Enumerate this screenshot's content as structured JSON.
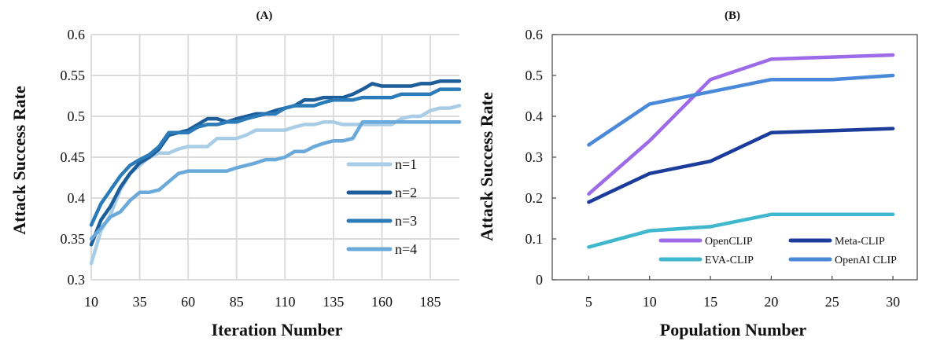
{
  "chart_data": [
    {
      "type": "line",
      "title": "(A)",
      "xlabel": "Iteration Number",
      "ylabel": "Attack Success Rate",
      "xlim": [
        10,
        200
      ],
      "ylim": [
        0.3,
        0.6
      ],
      "x_ticks": [
        "10",
        "35",
        "60",
        "85",
        "110",
        "135",
        "160",
        "185"
      ],
      "y_ticks": [
        "0.3",
        "0.35",
        "0.4",
        "0.45",
        "0.5",
        "0.55",
        "0.6"
      ],
      "grid": true,
      "legend_position": "bottom-right",
      "series": [
        {
          "name": "n=1",
          "color": "#a9cde6",
          "x": [
            10,
            15,
            20,
            25,
            30,
            35,
            40,
            45,
            50,
            55,
            60,
            65,
            70,
            75,
            80,
            85,
            90,
            95,
            100,
            105,
            110,
            115,
            120,
            125,
            130,
            135,
            140,
            145,
            150,
            155,
            160,
            165,
            170,
            175,
            180,
            185,
            190,
            195,
            200
          ],
          "values": [
            0.32,
            0.36,
            0.38,
            0.41,
            0.43,
            0.44,
            0.45,
            0.455,
            0.455,
            0.46,
            0.463,
            0.463,
            0.463,
            0.473,
            0.473,
            0.473,
            0.477,
            0.483,
            0.483,
            0.483,
            0.483,
            0.487,
            0.49,
            0.49,
            0.493,
            0.493,
            0.49,
            0.49,
            0.49,
            0.49,
            0.49,
            0.49,
            0.497,
            0.5,
            0.5,
            0.507,
            0.51,
            0.51,
            0.513
          ]
        },
        {
          "name": "n=2",
          "color": "#1c5d9a",
          "x": [
            10,
            15,
            20,
            25,
            30,
            35,
            40,
            45,
            50,
            55,
            60,
            65,
            70,
            75,
            80,
            85,
            90,
            95,
            100,
            105,
            110,
            115,
            120,
            125,
            130,
            135,
            140,
            145,
            150,
            155,
            160,
            165,
            170,
            175,
            180,
            185,
            190,
            195,
            200
          ],
          "values": [
            0.343,
            0.373,
            0.39,
            0.413,
            0.43,
            0.443,
            0.45,
            0.46,
            0.477,
            0.48,
            0.483,
            0.49,
            0.497,
            0.497,
            0.493,
            0.497,
            0.5,
            0.503,
            0.503,
            0.507,
            0.51,
            0.513,
            0.52,
            0.52,
            0.523,
            0.523,
            0.523,
            0.527,
            0.533,
            0.54,
            0.537,
            0.537,
            0.537,
            0.537,
            0.54,
            0.54,
            0.543,
            0.543,
            0.543
          ]
        },
        {
          "name": "n=3",
          "color": "#2b7bb8",
          "x": [
            10,
            15,
            20,
            25,
            30,
            35,
            40,
            45,
            50,
            55,
            60,
            65,
            70,
            75,
            80,
            85,
            90,
            95,
            100,
            105,
            110,
            115,
            120,
            125,
            130,
            135,
            140,
            145,
            150,
            155,
            160,
            165,
            170,
            175,
            180,
            185,
            190,
            195,
            200
          ],
          "values": [
            0.367,
            0.393,
            0.41,
            0.427,
            0.44,
            0.447,
            0.453,
            0.463,
            0.48,
            0.48,
            0.48,
            0.487,
            0.49,
            0.49,
            0.493,
            0.493,
            0.497,
            0.5,
            0.503,
            0.503,
            0.51,
            0.513,
            0.513,
            0.513,
            0.517,
            0.52,
            0.52,
            0.52,
            0.523,
            0.523,
            0.523,
            0.523,
            0.527,
            0.527,
            0.527,
            0.527,
            0.533,
            0.533,
            0.533
          ]
        },
        {
          "name": "n=4",
          "color": "#6aa9d9",
          "x": [
            10,
            15,
            20,
            25,
            30,
            35,
            40,
            45,
            50,
            55,
            60,
            65,
            70,
            75,
            80,
            85,
            90,
            95,
            100,
            105,
            110,
            115,
            120,
            125,
            130,
            135,
            140,
            145,
            150,
            155,
            160,
            165,
            170,
            175,
            180,
            185,
            190,
            195,
            200
          ],
          "values": [
            0.35,
            0.363,
            0.377,
            0.383,
            0.397,
            0.407,
            0.407,
            0.41,
            0.42,
            0.43,
            0.433,
            0.433,
            0.433,
            0.433,
            0.433,
            0.437,
            0.44,
            0.443,
            0.447,
            0.447,
            0.45,
            0.457,
            0.457,
            0.463,
            0.467,
            0.47,
            0.47,
            0.473,
            0.493,
            0.493,
            0.493,
            0.493,
            0.493,
            0.493,
            0.493,
            0.493,
            0.493,
            0.493,
            0.493
          ]
        }
      ]
    },
    {
      "type": "line",
      "title": "(B)",
      "xlabel": "Population Number",
      "ylabel": "Attack Success Rate",
      "xlim": [
        2,
        32
      ],
      "ylim": [
        0,
        0.6
      ],
      "x_ticks": [
        "5",
        "10",
        "15",
        "20",
        "25",
        "30"
      ],
      "y_ticks": [
        "0",
        "0.1",
        "0.2",
        "0.3",
        "0.4",
        "0.5",
        "0.6"
      ],
      "grid": false,
      "legend_position": "bottom-right",
      "x": [
        5,
        10,
        15,
        20,
        25,
        30
      ],
      "series": [
        {
          "name": "OpenCLIP",
          "color": "#9d6be8",
          "values": [
            0.21,
            0.34,
            0.49,
            0.54,
            0.545,
            0.55
          ]
        },
        {
          "name": "Meta-CLIP",
          "color": "#1b3c9b",
          "values": [
            0.19,
            0.26,
            0.29,
            0.36,
            0.365,
            0.37
          ]
        },
        {
          "name": "EVA-CLIP",
          "color": "#3fb7cc",
          "values": [
            0.08,
            0.12,
            0.13,
            0.16,
            0.16,
            0.16
          ]
        },
        {
          "name": "OpenAI CLIP",
          "color": "#4a88d9",
          "values": [
            0.33,
            0.43,
            0.46,
            0.49,
            0.49,
            0.5
          ]
        }
      ]
    }
  ]
}
